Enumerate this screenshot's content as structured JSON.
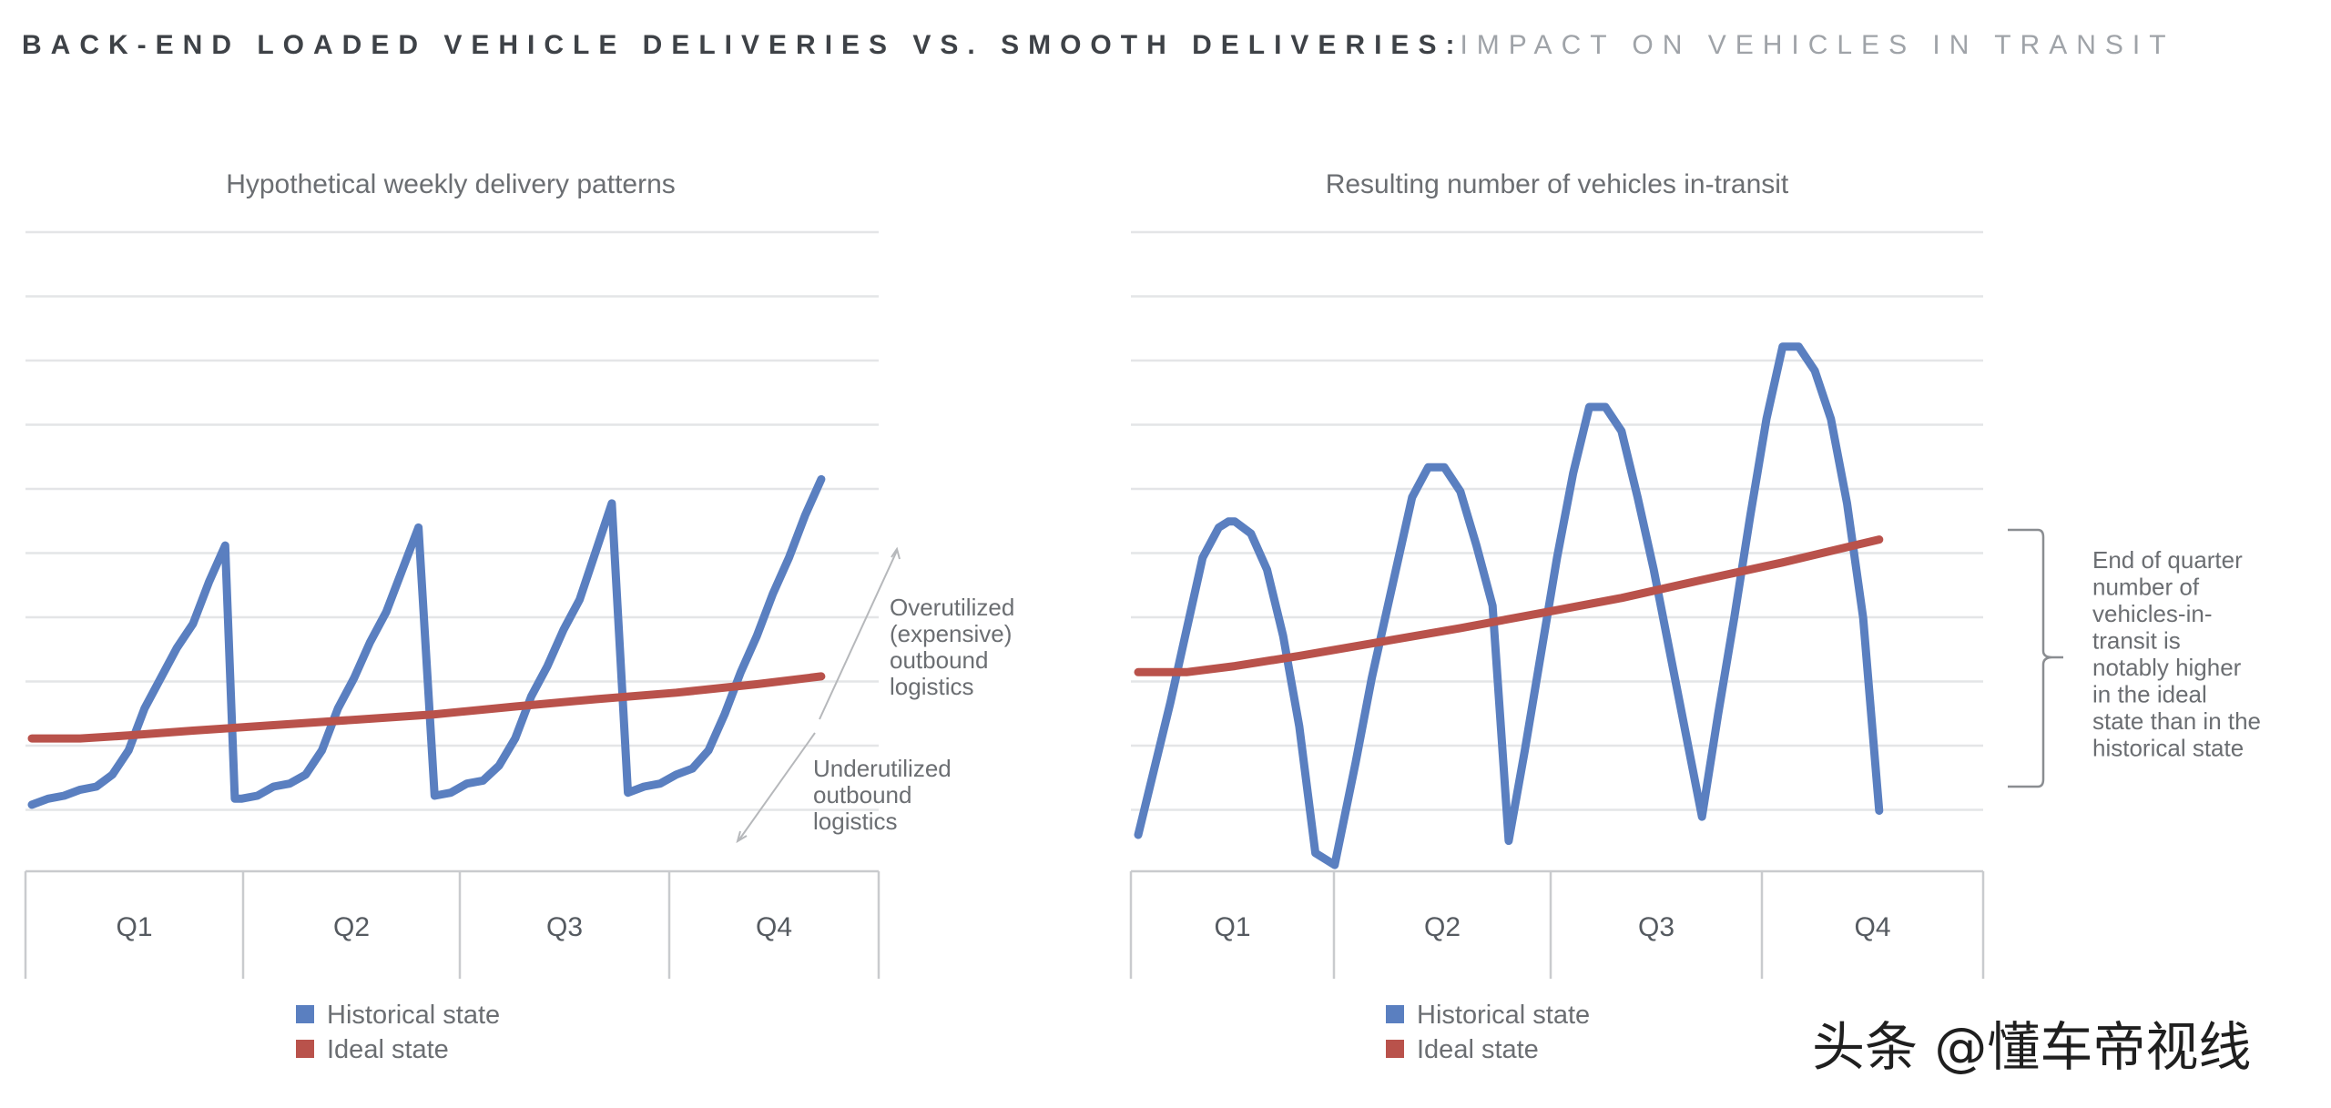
{
  "header": {
    "title_main": "BACK-END LOADED VEHICLE DELIVERIES VS. SMOOTH DELIVERIES",
    "separator": ":",
    "title_sub": "IMPACT ON VEHICLES IN TRANSIT"
  },
  "watermark": "头条 @懂车帝视线",
  "colors": {
    "historical": "#5a7fc0",
    "ideal": "#b9524b",
    "grid": "#e4e5e7",
    "text": "#6b6e72"
  },
  "chart_data": [
    {
      "type": "line",
      "title": "Hypothetical weekly delivery patterns",
      "categories": [
        "Q1",
        "Q2",
        "Q3",
        "Q4"
      ],
      "x_range": [
        0,
        52
      ],
      "ylim": [
        0,
        100
      ],
      "grid": true,
      "legend_position": "bottom-center",
      "series": [
        {
          "name": "Historical state",
          "color": "#5a7fc0",
          "points": [
            [
              0,
              5
            ],
            [
              1,
              6
            ],
            [
              2,
              6.5
            ],
            [
              3,
              7.5
            ],
            [
              4,
              8
            ],
            [
              5,
              10
            ],
            [
              6,
              14
            ],
            [
              7,
              21
            ],
            [
              8,
              26
            ],
            [
              9,
              31
            ],
            [
              10,
              35
            ],
            [
              11,
              42
            ],
            [
              12,
              48
            ],
            [
              12.6,
              6
            ],
            [
              13,
              6
            ],
            [
              14,
              6.5
            ],
            [
              15,
              8
            ],
            [
              16,
              8.5
            ],
            [
              17,
              10
            ],
            [
              18,
              14
            ],
            [
              19,
              21
            ],
            [
              20,
              26
            ],
            [
              21,
              32
            ],
            [
              22,
              37
            ],
            [
              23,
              44
            ],
            [
              24,
              51
            ],
            [
              25,
              6.5
            ],
            [
              26,
              7
            ],
            [
              27,
              8.5
            ],
            [
              28,
              9
            ],
            [
              29,
              11.5
            ],
            [
              30,
              16
            ],
            [
              31,
              23
            ],
            [
              32,
              28
            ],
            [
              33,
              34
            ],
            [
              34,
              39
            ],
            [
              35,
              47
            ],
            [
              36,
              55
            ],
            [
              37,
              7
            ],
            [
              38,
              8
            ],
            [
              39,
              8.5
            ],
            [
              40,
              10
            ],
            [
              41,
              11
            ],
            [
              42,
              14
            ],
            [
              43,
              20
            ],
            [
              44,
              27
            ],
            [
              45,
              33
            ],
            [
              46,
              40
            ],
            [
              47,
              46
            ],
            [
              48,
              53
            ],
            [
              49,
              59
            ]
          ]
        },
        {
          "name": "Ideal state",
          "color": "#b9524b",
          "points": [
            [
              0,
              16
            ],
            [
              3,
              16
            ],
            [
              6,
              16.5
            ],
            [
              10,
              17.3
            ],
            [
              15,
              18.2
            ],
            [
              20,
              19.1
            ],
            [
              25,
              20
            ],
            [
              30,
              21.3
            ],
            [
              35,
              22.5
            ],
            [
              40,
              23.6
            ],
            [
              45,
              25
            ],
            [
              49,
              26.3
            ]
          ]
        }
      ],
      "annotations": {
        "over": [
          "Overutilized",
          "(expensive)",
          "outbound",
          "logistics"
        ],
        "under": [
          "Underutilized",
          "outbound",
          "logistics"
        ]
      }
    },
    {
      "type": "line",
      "title": "Resulting number of vehicles in-transit",
      "categories": [
        "Q1",
        "Q2",
        "Q3",
        "Q4"
      ],
      "x_range": [
        0,
        52
      ],
      "ylim": [
        0,
        100
      ],
      "grid": true,
      "legend_position": "bottom-center",
      "series": [
        {
          "name": "Historical state",
          "color": "#5a7fc0",
          "points": [
            [
              0,
              0
            ],
            [
              2,
              22
            ],
            [
              3,
              34
            ],
            [
              4,
              46
            ],
            [
              5,
              51
            ],
            [
              5.6,
              52
            ],
            [
              6,
              52
            ],
            [
              7,
              50
            ],
            [
              8,
              44
            ],
            [
              9,
              33
            ],
            [
              10,
              18
            ],
            [
              11,
              -3
            ],
            [
              12.2,
              -5
            ],
            [
              13.5,
              12
            ],
            [
              14.5,
              26
            ],
            [
              15.5,
              38
            ],
            [
              17,
              56
            ],
            [
              18,
              61
            ],
            [
              19,
              61
            ],
            [
              20,
              57
            ],
            [
              21,
              48
            ],
            [
              22,
              38
            ],
            [
              23,
              -1
            ],
            [
              24,
              14
            ],
            [
              25,
              30
            ],
            [
              26,
              46
            ],
            [
              27,
              60
            ],
            [
              28,
              71
            ],
            [
              29,
              71
            ],
            [
              30,
              67
            ],
            [
              31,
              56
            ],
            [
              32,
              44
            ],
            [
              35,
              3
            ],
            [
              36,
              20
            ],
            [
              37,
              36
            ],
            [
              38,
              53
            ],
            [
              39,
              69
            ],
            [
              40,
              81
            ],
            [
              41,
              81
            ],
            [
              42,
              77
            ],
            [
              43,
              69
            ],
            [
              44,
              55
            ],
            [
              45,
              36
            ],
            [
              46,
              4
            ]
          ]
        },
        {
          "name": "Ideal state",
          "color": "#b9524b",
          "points": [
            [
              0,
              27
            ],
            [
              3,
              27
            ],
            [
              6,
              28
            ],
            [
              10,
              29.7
            ],
            [
              15,
              32
            ],
            [
              20,
              34.3
            ],
            [
              25,
              36.8
            ],
            [
              30,
              39.3
            ],
            [
              35,
              42.3
            ],
            [
              40,
              45.2
            ],
            [
              46,
              49
            ]
          ]
        }
      ],
      "annotation_lines": [
        "End of quarter",
        "number of",
        "vehicles-in-",
        "transit is",
        "notably higher",
        "in the ideal",
        "state than in the",
        "historical state"
      ]
    }
  ]
}
